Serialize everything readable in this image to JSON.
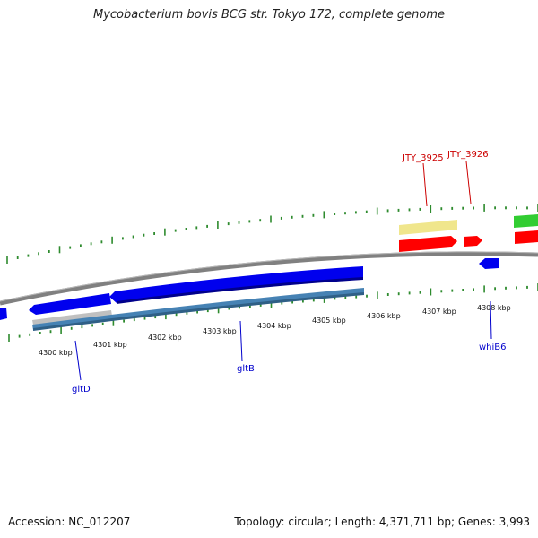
{
  "title": "Mycobacterium bovis BCG str. Tokyo 172, complete genome",
  "footer": {
    "accession": "Accession: NC_012207",
    "summary": "Topology: circular; Length: 4,371,711 bp; Genes: 3,993"
  },
  "colors": {
    "backbone": "#808080",
    "tick": "#2e8b2e",
    "gene_forward": "#0000ee",
    "gene_forward_dark": "#00008b",
    "gene_reverse": "#4682b4",
    "gene_grey": "#c0c0c0",
    "gene_red": "#ff0000",
    "gene_yellow": "#f0e68c",
    "gene_green": "#32cd32",
    "label_blue": "#0000cc",
    "label_red": "#cc0000"
  },
  "scale_labels": [
    "4300 kbp",
    "4301 kbp",
    "4302 kbp",
    "4303 kbp",
    "4304 kbp",
    "4305 kbp",
    "4306 kbp",
    "4307 kbp",
    "4308 kbp"
  ],
  "gene_labels": {
    "gltD": "gltD",
    "gltB": "gltB",
    "whiB6": "whiB6",
    "jty3925": "JTY_3925",
    "jty3926": "JTY_3926"
  }
}
